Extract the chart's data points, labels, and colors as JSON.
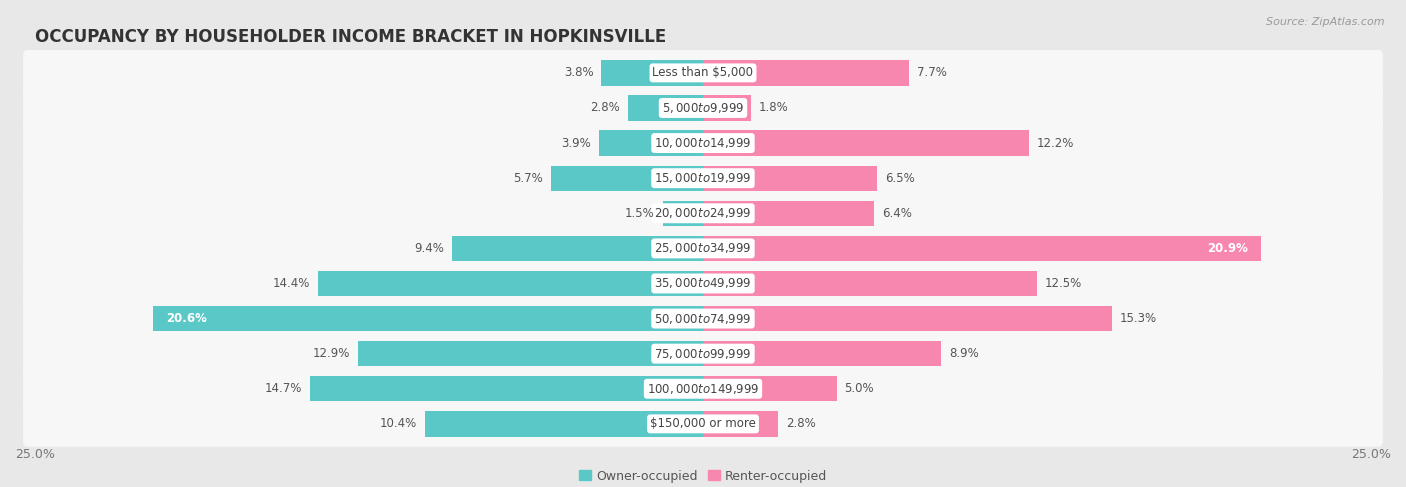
{
  "title": "OCCUPANCY BY HOUSEHOLDER INCOME BRACKET IN HOPKINSVILLE",
  "source": "Source: ZipAtlas.com",
  "categories": [
    "Less than $5,000",
    "$5,000 to $9,999",
    "$10,000 to $14,999",
    "$15,000 to $19,999",
    "$20,000 to $24,999",
    "$25,000 to $34,999",
    "$35,000 to $49,999",
    "$50,000 to $74,999",
    "$75,000 to $99,999",
    "$100,000 to $149,999",
    "$150,000 or more"
  ],
  "owner_values": [
    3.8,
    2.8,
    3.9,
    5.7,
    1.5,
    9.4,
    14.4,
    20.6,
    12.9,
    14.7,
    10.4
  ],
  "renter_values": [
    7.7,
    1.8,
    12.2,
    6.5,
    6.4,
    20.9,
    12.5,
    15.3,
    8.9,
    5.0,
    2.8
  ],
  "owner_color": "#5bc8c8",
  "renter_color": "#f887af",
  "background_color": "#e8e8e8",
  "bar_background": "#f7f7f7",
  "xlim": 25.0,
  "bar_height": 0.72,
  "title_fontsize": 12,
  "label_fontsize": 8.5,
  "tick_fontsize": 9,
  "source_fontsize": 8,
  "legend_fontsize": 9,
  "value_fontsize": 8.5
}
